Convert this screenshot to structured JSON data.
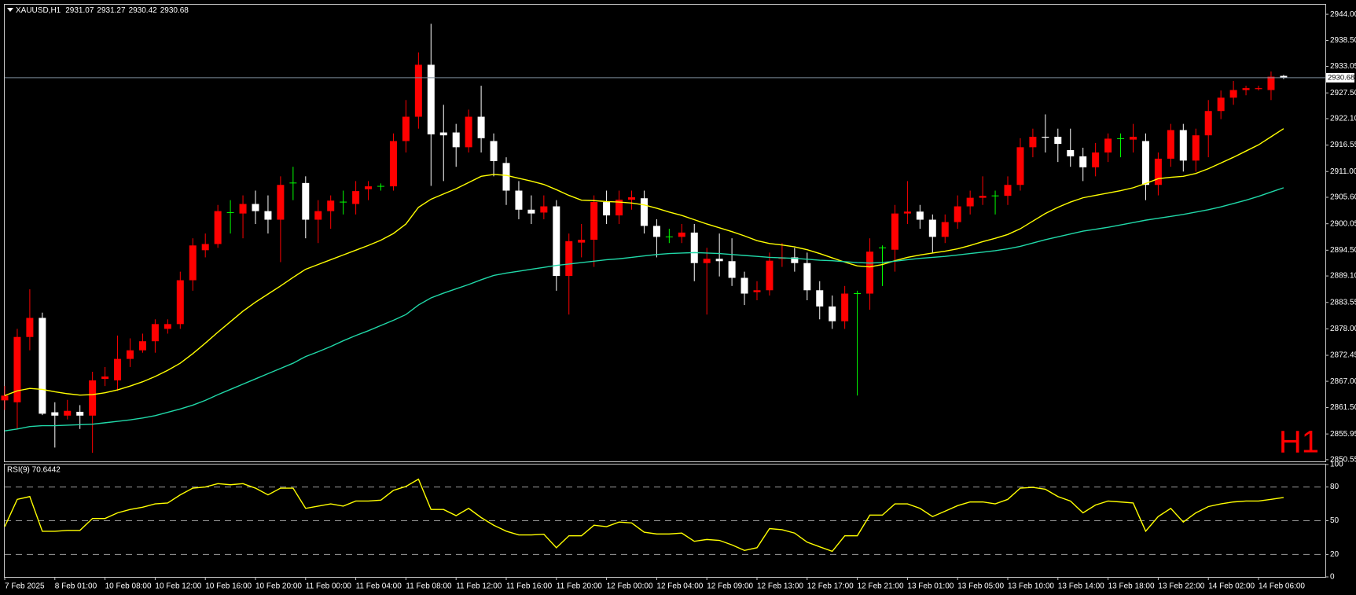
{
  "chart_data": [
    {
      "type": "candlestick",
      "symbol": "XAUUSD,H1",
      "watermark": "H1",
      "categories": [
        "7 Feb 2025",
        null,
        null,
        null,
        "8 Feb 01:00",
        null,
        null,
        null,
        "10 Feb 08:00",
        null,
        null,
        null,
        "10 Feb 12:00",
        null,
        null,
        null,
        "10 Feb 16:00",
        null,
        null,
        null,
        "10 Feb 20:00",
        null,
        null,
        null,
        "11 Feb 00:00",
        null,
        null,
        null,
        "11 Feb 04:00",
        null,
        null,
        null,
        "11 Feb 08:00",
        null,
        null,
        null,
        "11 Feb 12:00",
        null,
        null,
        null,
        "11 Feb 16:00",
        null,
        null,
        null,
        "11 Feb 20:00",
        null,
        null,
        null,
        "12 Feb 00:00",
        null,
        null,
        null,
        "12 Feb 04:00",
        null,
        null,
        null,
        "12 Feb 09:00",
        null,
        null,
        null,
        "12 Feb 13:00",
        null,
        null,
        null,
        "12 Feb 17:00",
        null,
        null,
        null,
        "12 Feb 21:00",
        null,
        null,
        null,
        "13 Feb 01:00",
        null,
        null,
        null,
        "13 Feb 05:00",
        null,
        null,
        null,
        "13 Feb 10:00",
        null,
        null,
        null,
        "13 Feb 14:00",
        null,
        null,
        null,
        "13 Feb 18:00",
        null,
        null,
        null,
        "13 Feb 22:00",
        null,
        null,
        null,
        "14 Feb 02:00",
        null,
        null,
        null,
        "14 Feb 06:00",
        null,
        null
      ],
      "open": [
        2863,
        2862.6,
        2876.3,
        2880.3,
        2860.5,
        2859.8,
        2860.6,
        2859.8,
        2867.5,
        2867.2,
        2871.7,
        2873.5,
        2875.4,
        2878,
        2879,
        2888.2,
        2894.5,
        2895.8,
        2902.4,
        2902.2,
        2904.2,
        2902.7,
        2900.9,
        2908.6,
        2908.6,
        2900.9,
        2902.7,
        2904.6,
        2904.2,
        2907.3,
        2907.9,
        2907.9,
        2917.4,
        2922.5,
        2933.4,
        2919.2,
        2919.2,
        2916.1,
        2922.5,
        2917.4,
        2912.8,
        2907,
        2903,
        2902.4,
        2903.7,
        2889.1,
        2896.1,
        2896.7,
        2904.6,
        2901.8,
        2905.1,
        2905.4,
        2899.6,
        2897.3,
        2897.3,
        2898.2,
        2891.8,
        2892.7,
        2892.2,
        2888.7,
        2885.7,
        2886.1,
        2892.7,
        2893,
        2891.8,
        2886.1,
        2882.7,
        2879.6,
        2885.4,
        2885.4,
        2895,
        2894.6,
        2902.2,
        2902.6,
        2900.9,
        2897.3,
        2900.4,
        2903.7,
        2905.5,
        2905.9,
        2905.9,
        2908.2,
        2916.1,
        2918.3,
        2918.3,
        2915.5,
        2914.2,
        2911.9,
        2915,
        2917.9,
        2917.7,
        2917.4,
        2908.2,
        2913.7,
        2919.7,
        2913.3,
        2918.6,
        2923.7,
        2926.5,
        2928.1,
        2928.3,
        2928.1,
        2931.07
      ],
      "high": [
        2866,
        2878,
        2886.3,
        2881.4,
        2862.6,
        2863.1,
        2862,
        2869,
        2870,
        2876.6,
        2876,
        2877,
        2880,
        2880,
        2890,
        2897,
        2898,
        2904,
        2905,
        2906,
        2907,
        2906,
        2910,
        2912,
        2910,
        2905,
        2906,
        2907,
        2909,
        2909,
        2908.5,
        2919,
        2926,
        2936,
        2942,
        2925,
        2921,
        2924,
        2929,
        2919,
        2914,
        2909,
        2906,
        2906,
        2905,
        2898,
        2900,
        2906,
        2907,
        2907,
        2907,
        2907,
        2901,
        2899,
        2900,
        2900,
        2895,
        2898,
        2897,
        2890,
        2888,
        2894,
        2896,
        2895,
        2894,
        2888,
        2885,
        2887,
        2886,
        2897,
        2895.5,
        2904,
        2909,
        2904,
        2902,
        2902,
        2906,
        2907,
        2910,
        2907,
        2910,
        2918,
        2920,
        2923,
        2920,
        2920,
        2916,
        2917,
        2919,
        2919,
        2921,
        2919,
        2915,
        2921,
        2921,
        2920,
        2926,
        2928,
        2930,
        2929,
        2929,
        2932,
        2931.27
      ],
      "low": [
        2861,
        2857,
        2873.5,
        2859.9,
        2853.1,
        2859,
        2857,
        2852,
        2866,
        2865,
        2870,
        2873,
        2873,
        2877,
        2878,
        2886,
        2893,
        2895,
        2898,
        2897,
        2900,
        2898,
        2892,
        2905,
        2897,
        2896,
        2899,
        2902,
        2902,
        2905,
        2907,
        2907,
        2915,
        2920,
        2908,
        2909,
        2912,
        2915,
        2915,
        2910,
        2904,
        2901,
        2900,
        2901,
        2886,
        2881,
        2893,
        2891,
        2900,
        2900,
        2903,
        2898,
        2893,
        2896,
        2896,
        2888,
        2881,
        2889,
        2887,
        2883,
        2884,
        2885,
        2891,
        2890,
        2884,
        2880,
        2878,
        2878,
        2864,
        2882,
        2887,
        2890,
        2900,
        2899,
        2894,
        2896,
        2899,
        2902,
        2904,
        2902,
        2904,
        2907,
        2914,
        2915,
        2913,
        2912,
        2909,
        2910,
        2913,
        2914,
        2915,
        2905,
        2906,
        2912,
        2911,
        2911,
        2914,
        2922,
        2925,
        2927,
        2928,
        2926,
        2930.42
      ],
      "close": [
        2864,
        2876.3,
        2880.3,
        2860.2,
        2859.8,
        2860.8,
        2859.8,
        2867.2,
        2868,
        2871.7,
        2873.5,
        2875.4,
        2879,
        2879,
        2888.2,
        2895.5,
        2895.8,
        2902.7,
        2902.4,
        2904.2,
        2902.7,
        2900.9,
        2908.2,
        2908.6,
        2900.9,
        2902.7,
        2904.9,
        2904.6,
        2906.9,
        2907.9,
        2907.9,
        2917.4,
        2922.5,
        2933.4,
        2918.8,
        2918.6,
        2916.1,
        2922.5,
        2918,
        2913.2,
        2907,
        2903,
        2902.2,
        2903.7,
        2889.1,
        2896.4,
        2896.7,
        2904.6,
        2901.8,
        2905.1,
        2905.6,
        2899.6,
        2897.3,
        2897.3,
        2898.2,
        2891.8,
        2892.7,
        2892.2,
        2888.7,
        2885.4,
        2886.1,
        2892.3,
        2893,
        2891.8,
        2886.1,
        2882.7,
        2879.6,
        2885.4,
        2885.4,
        2894.2,
        2895,
        2902.2,
        2902.6,
        2900.9,
        2897.3,
        2900.4,
        2903.7,
        2905.5,
        2905.9,
        2905.9,
        2908.2,
        2916.1,
        2918.3,
        2918.1,
        2916.8,
        2914.2,
        2911.9,
        2915,
        2917.9,
        2917.9,
        2918.3,
        2908.2,
        2913.7,
        2919.7,
        2913.3,
        2918.6,
        2923.7,
        2926.5,
        2928.1,
        2928.5,
        2928.5,
        2930.9,
        2930.68
      ],
      "up_color": "#ff0000",
      "down_color": "#ffffff",
      "doji_color": "#00ff00",
      "series": [
        {
          "color": "#ffff00",
          "values": [
            2864,
            2865,
            2865.5,
            2865.3,
            2864.8,
            2864.4,
            2864.1,
            2864.2,
            2864.6,
            2865.2,
            2866,
            2866.9,
            2868,
            2869.3,
            2870.8,
            2872.8,
            2875,
            2877.3,
            2879.5,
            2881.7,
            2883.6,
            2885.3,
            2887,
            2888.8,
            2890.5,
            2891.5,
            2892.5,
            2893.5,
            2894.5,
            2895.5,
            2896.6,
            2898,
            2900,
            2903.5,
            2905.2,
            2906.3,
            2907.4,
            2908.7,
            2910,
            2910.4,
            2910.2,
            2909.6,
            2909,
            2908.3,
            2907.2,
            2906,
            2905,
            2904.9,
            2904.7,
            2904.6,
            2904.4,
            2904,
            2903.3,
            2902.5,
            2901.8,
            2900.9,
            2900,
            2899.2,
            2898.4,
            2897.5,
            2896.5,
            2895.9,
            2895.6,
            2895.2,
            2894.6,
            2893.8,
            2892.9,
            2892,
            2891.2,
            2891,
            2891.5,
            2892.3,
            2893,
            2893.5,
            2893.9,
            2894.3,
            2894.8,
            2895.5,
            2896.3,
            2897,
            2897.8,
            2899,
            2900.6,
            2902.2,
            2903.5,
            2904.6,
            2905.5,
            2906,
            2906.5,
            2907,
            2907.6,
            2908.5,
            2909.5,
            2909.8,
            2910,
            2910.6,
            2911.6,
            2912.8,
            2914,
            2915.3,
            2916.6,
            2918.3,
            2920
          ]
        },
        {
          "color": "#20d8a8",
          "values": [
            2856.6,
            2857,
            2857.5,
            2857.7,
            2857.7,
            2857.8,
            2857.9,
            2858,
            2858.3,
            2858.6,
            2858.9,
            2859.3,
            2859.8,
            2860.5,
            2861.2,
            2862,
            2863,
            2864.2,
            2865.3,
            2866.4,
            2867.5,
            2868.6,
            2869.7,
            2870.8,
            2872.2,
            2873.2,
            2874.3,
            2875.5,
            2876.6,
            2877.6,
            2878.7,
            2879.8,
            2881,
            2883,
            2884.5,
            2885.5,
            2886.4,
            2887.3,
            2888.3,
            2889.2,
            2889.7,
            2890.1,
            2890.5,
            2890.9,
            2891.3,
            2891.6,
            2891.9,
            2892.2,
            2892.5,
            2892.7,
            2893,
            2893.3,
            2893.6,
            2893.8,
            2893.9,
            2894,
            2893.9,
            2893.8,
            2893.6,
            2893.4,
            2893.2,
            2893,
            2892.9,
            2892.8,
            2892.6,
            2892.4,
            2892.3,
            2892.1,
            2891.9,
            2891.8,
            2891.9,
            2892.2,
            2892.5,
            2892.8,
            2893,
            2893.2,
            2893.5,
            2893.8,
            2894.1,
            2894.4,
            2894.8,
            2895.3,
            2896,
            2896.7,
            2897.3,
            2897.9,
            2898.5,
            2898.9,
            2899.3,
            2899.8,
            2900.3,
            2900.8,
            2901.2,
            2901.6,
            2902,
            2902.5,
            2903,
            2903.6,
            2904.3,
            2905,
            2905.8,
            2906.7,
            2907.6
          ]
        }
      ],
      "price_line_color": "#7d8c9a",
      "ylim": [
        2850.2,
        2946
      ],
      "yticks": [
        {
          "value": 2944,
          "label": "2944.00"
        },
        {
          "value": 2938.5,
          "label": "2938.50"
        },
        2933.05,
        {
          "value": 2927.5,
          "label": "2927.50"
        },
        {
          "value": 2922.1,
          "label": "2922.10"
        },
        2916.55,
        {
          "value": 2911,
          "label": "2911.00"
        },
        {
          "value": 2905.6,
          "label": "2905.60"
        },
        2900.05,
        {
          "value": 2894.5,
          "label": "2894.50"
        },
        {
          "value": 2889.1,
          "label": "2889.10"
        },
        2883.55,
        {
          "value": 2878,
          "label": "2878.00"
        },
        2872.45,
        {
          "value": 2867,
          "label": "2867.00"
        },
        {
          "value": 2861.5,
          "label": "2861.50"
        },
        2855.95,
        2850.55
      ],
      "grid": false
    },
    {
      "type": "line",
      "title": "RSI(9) 70.6442",
      "color": "#ffff00",
      "values": [
        44.7,
        69,
        71.5,
        40.6,
        40.6,
        41.4,
        41.4,
        52,
        52,
        57,
        60,
        62,
        65,
        65.8,
        73,
        79,
        80,
        83,
        82,
        83,
        79,
        73,
        79,
        79,
        61,
        63,
        65,
        63,
        67.5,
        67.5,
        68.3,
        77,
        80.5,
        87,
        60,
        60,
        54.5,
        61,
        52.8,
        46,
        40.7,
        37.4,
        37.4,
        38,
        26,
        36.6,
        36.6,
        46,
        44.7,
        48.8,
        48,
        39.8,
        38.2,
        38.2,
        39,
        31.7,
        33.3,
        32.5,
        28.5,
        23.6,
        26,
        43,
        42,
        39,
        30.9,
        26.8,
        22.8,
        36.6,
        36.6,
        55,
        55,
        65,
        65,
        61,
        53.7,
        58.5,
        63.4,
        66.7,
        66.7,
        65,
        69,
        79,
        79.7,
        78,
        71.5,
        67.5,
        57,
        64,
        67.5,
        66.7,
        65.8,
        40.7,
        53.7,
        61,
        48.8,
        57,
        62.6,
        65,
        66.7,
        67.5,
        67.5,
        69,
        70.6442
      ],
      "ylim": [
        0,
        100
      ],
      "yticks": [
        100,
        80,
        50,
        20,
        0
      ],
      "levels": [
        80,
        50,
        20
      ],
      "grid": false
    }
  ]
}
